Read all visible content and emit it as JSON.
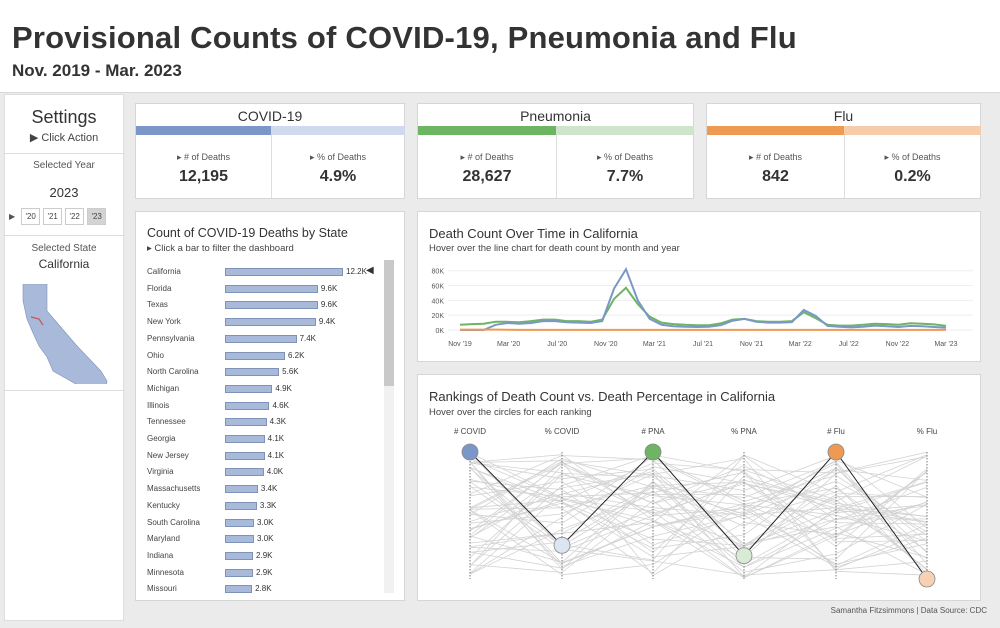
{
  "header": {
    "title": "Provisional Counts of COVID-19, Pneumonia and Flu",
    "subtitle": "Nov. 2019 - Mar. 2023"
  },
  "sidebar": {
    "settings_title": "Settings",
    "click_action": "▶ Click Action",
    "selected_year_label": "Selected Year",
    "selected_year": "2023",
    "year_arrow": "▶",
    "years": [
      "'20",
      "'21",
      "'22",
      "'23"
    ],
    "selected_state_label": "Selected State",
    "selected_state": "California"
  },
  "kpis": [
    {
      "title": "COVID-19",
      "deaths_label": "# of Deaths",
      "deaths": "12,195",
      "pct_label": "% of Deaths",
      "pct": "4.9%",
      "color_dark": "#7b97c8",
      "color_light": "#cfdaee"
    },
    {
      "title": "Pneumonia",
      "deaths_label": "# of Deaths",
      "deaths": "28,627",
      "pct_label": "% of Deaths",
      "pct": "7.7%",
      "color_dark": "#6db562",
      "color_light": "#cfe5cb"
    },
    {
      "title": "Flu",
      "deaths_label": "# of Deaths",
      "deaths": "842",
      "pct_label": "% of Deaths",
      "pct": "0.2%",
      "color_dark": "#ef9a52",
      "color_light": "#f7ccab"
    }
  ],
  "state_panel": {
    "title": "Count of COVID-19 Deaths by State",
    "subtitle": "▸ Click a bar to filter the dashboard",
    "selected_marker": "◀"
  },
  "line_panel": {
    "title": "Death Count Over Time in California",
    "subtitle": "Hover over the line chart for death count by month and year"
  },
  "rank_panel": {
    "title": "Rankings of Death Count vs. Death Percentage in California",
    "subtitle": "Hover over the circles for each ranking"
  },
  "footer": "Samantha Fitzsimmons | Data Source: CDC",
  "chart_data": [
    {
      "type": "bar",
      "orientation": "horizontal",
      "categories": [
        "California",
        "Florida",
        "Texas",
        "New York",
        "Pennsylvania",
        "Ohio",
        "North Carolina",
        "Michigan",
        "Illinois",
        "Tennessee",
        "Georgia",
        "New Jersey",
        "Virginia",
        "Massachusetts",
        "Kentucky",
        "South Carolina",
        "Maryland",
        "Indiana",
        "Minnesota",
        "Missouri"
      ],
      "values": [
        12200,
        9600,
        9600,
        9400,
        7400,
        6200,
        5600,
        4900,
        4600,
        4300,
        4100,
        4100,
        4000,
        3400,
        3300,
        3000,
        3000,
        2900,
        2900,
        2800
      ],
      "labels": [
        "12.2K",
        "9.6K",
        "9.6K",
        "9.4K",
        "7.4K",
        "6.2K",
        "5.6K",
        "4.9K",
        "4.6K",
        "4.3K",
        "4.1K",
        "4.1K",
        "4.0K",
        "3.4K",
        "3.3K",
        "3.0K",
        "3.0K",
        "2.9K",
        "2.9K",
        "2.8K"
      ],
      "color": "#a8b9d9"
    },
    {
      "type": "line",
      "x_ticks": [
        "Nov '19",
        "Mar '20",
        "Jul '20",
        "Nov '20",
        "Mar '21",
        "Jul '21",
        "Nov '21",
        "Mar '22",
        "Jul '22",
        "Nov '22",
        "Mar '23"
      ],
      "y_ticks": [
        "80K",
        "60K",
        "40K",
        "20K",
        "0K"
      ],
      "ylim": [
        0,
        85000
      ],
      "n_points": 42,
      "series": [
        {
          "color": "#6db562",
          "values": [
            7000,
            8000,
            8500,
            11000,
            11000,
            10500,
            12000,
            14000,
            14000,
            12000,
            12000,
            11000,
            14000,
            42000,
            57000,
            35000,
            18000,
            10000,
            8000,
            7000,
            6500,
            6500,
            9000,
            14000,
            15000,
            12000,
            11000,
            11000,
            12000,
            24000,
            16000,
            7000,
            6000,
            6000,
            7000,
            8500,
            8000,
            7000,
            9000,
            8500,
            7500,
            5500
          ]
        },
        {
          "color": "#7b97c8",
          "values": [
            0,
            0,
            0,
            7000,
            9500,
            8500,
            9500,
            12000,
            12000,
            10500,
            10000,
            9500,
            12000,
            56000,
            82000,
            40000,
            15000,
            7000,
            5000,
            4500,
            4000,
            4500,
            6500,
            12500,
            15000,
            11000,
            10000,
            10000,
            10500,
            27000,
            19000,
            5500,
            4500,
            3500,
            4500,
            6000,
            5000,
            4000,
            5500,
            5000,
            4000,
            3000
          ]
        },
        {
          "color": "#ef9a52",
          "values": [
            500,
            500,
            500,
            500,
            300,
            200,
            100,
            100,
            100,
            100,
            100,
            100,
            100,
            100,
            100,
            100,
            100,
            100,
            100,
            100,
            100,
            100,
            100,
            100,
            100,
            100,
            100,
            100,
            100,
            100,
            100,
            100,
            100,
            100,
            100,
            100,
            100,
            100,
            100,
            100,
            100,
            100
          ]
        }
      ]
    },
    {
      "type": "parallel_coordinates",
      "axes": [
        "# COVID",
        "% COVID",
        "# PNA",
        "% PNA",
        "# Flu",
        "% Flu"
      ],
      "n_states": 50,
      "highlight": {
        "name": "California",
        "ranks": [
          1,
          37,
          1,
          41,
          1,
          50
        ],
        "colors": [
          "#7b97c8",
          "#dce5f3",
          "#6db562",
          "#d9ebd6",
          "#ef9a52",
          "#f7d1b1"
        ]
      }
    }
  ]
}
